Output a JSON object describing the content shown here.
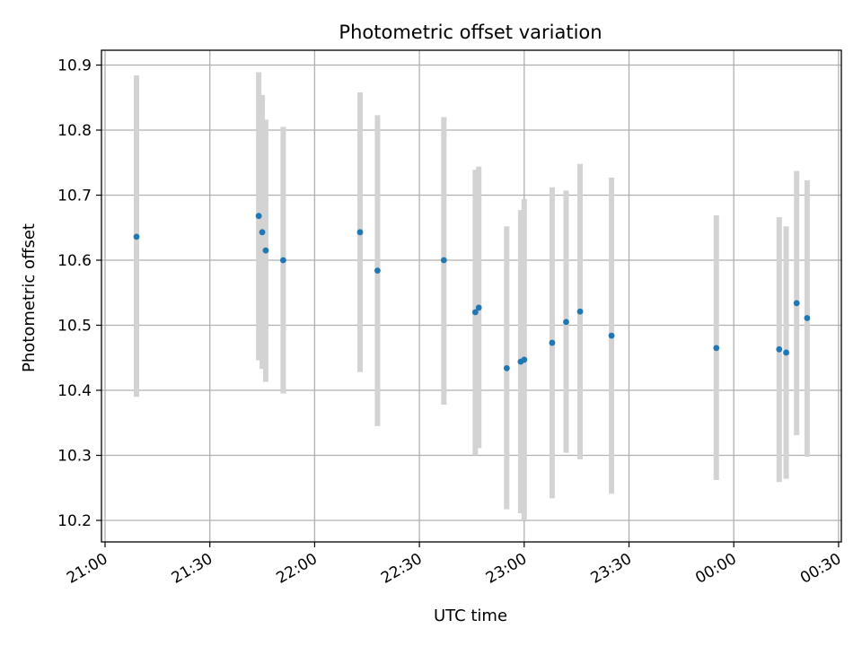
{
  "chart_data": {
    "type": "scatter",
    "title": "Photometric offset variation",
    "xlabel": "UTC time",
    "ylabel": "Photometric offset",
    "x_ticks": [
      "21:00",
      "21:30",
      "22:00",
      "22:30",
      "23:00",
      "23:30",
      "00:00",
      "00:30"
    ],
    "y_ticks": [
      "10.2",
      "10.3",
      "10.4",
      "10.5",
      "10.6",
      "10.7",
      "10.8",
      "10.9"
    ],
    "grid": true,
    "colors": {
      "points": "#1f77b4",
      "errorbars": "#d3d3d3",
      "grid": "#b0b0b0"
    },
    "points": [
      {
        "x": "21:09",
        "y": 10.636,
        "low": 10.39,
        "high": 10.884
      },
      {
        "x": "21:44",
        "y": 10.668,
        "low": 10.446,
        "high": 10.889
      },
      {
        "x": "21:45",
        "y": 10.643,
        "low": 10.433,
        "high": 10.854
      },
      {
        "x": "21:46",
        "y": 10.615,
        "low": 10.413,
        "high": 10.816
      },
      {
        "x": "21:51",
        "y": 10.6,
        "low": 10.395,
        "high": 10.805
      },
      {
        "x": "22:13",
        "y": 10.643,
        "low": 10.428,
        "high": 10.858
      },
      {
        "x": "22:18",
        "y": 10.584,
        "low": 10.345,
        "high": 10.823
      },
      {
        "x": "22:37",
        "y": 10.6,
        "low": 10.378,
        "high": 10.82
      },
      {
        "x": "22:46",
        "y": 10.52,
        "low": 10.3,
        "high": 10.739
      },
      {
        "x": "22:47",
        "y": 10.527,
        "low": 10.311,
        "high": 10.744
      },
      {
        "x": "22:55",
        "y": 10.434,
        "low": 10.217,
        "high": 10.652
      },
      {
        "x": "22:59",
        "y": 10.444,
        "low": 10.211,
        "high": 10.677
      },
      {
        "x": "23:00",
        "y": 10.447,
        "low": 10.2,
        "high": 10.694
      },
      {
        "x": "23:08",
        "y": 10.473,
        "low": 10.234,
        "high": 10.712
      },
      {
        "x": "23:12",
        "y": 10.505,
        "low": 10.304,
        "high": 10.707
      },
      {
        "x": "23:16",
        "y": 10.521,
        "low": 10.294,
        "high": 10.748
      },
      {
        "x": "23:25",
        "y": 10.484,
        "low": 10.241,
        "high": 10.727
      },
      {
        "x": "23:55",
        "y": 10.465,
        "low": 10.262,
        "high": 10.669
      },
      {
        "x": "00:13",
        "y": 10.463,
        "low": 10.259,
        "high": 10.666
      },
      {
        "x": "00:15",
        "y": 10.458,
        "low": 10.264,
        "high": 10.652
      },
      {
        "x": "00:18",
        "y": 10.534,
        "low": 10.331,
        "high": 10.737
      },
      {
        "x": "00:21",
        "y": 10.511,
        "low": 10.298,
        "high": 10.723
      }
    ]
  }
}
